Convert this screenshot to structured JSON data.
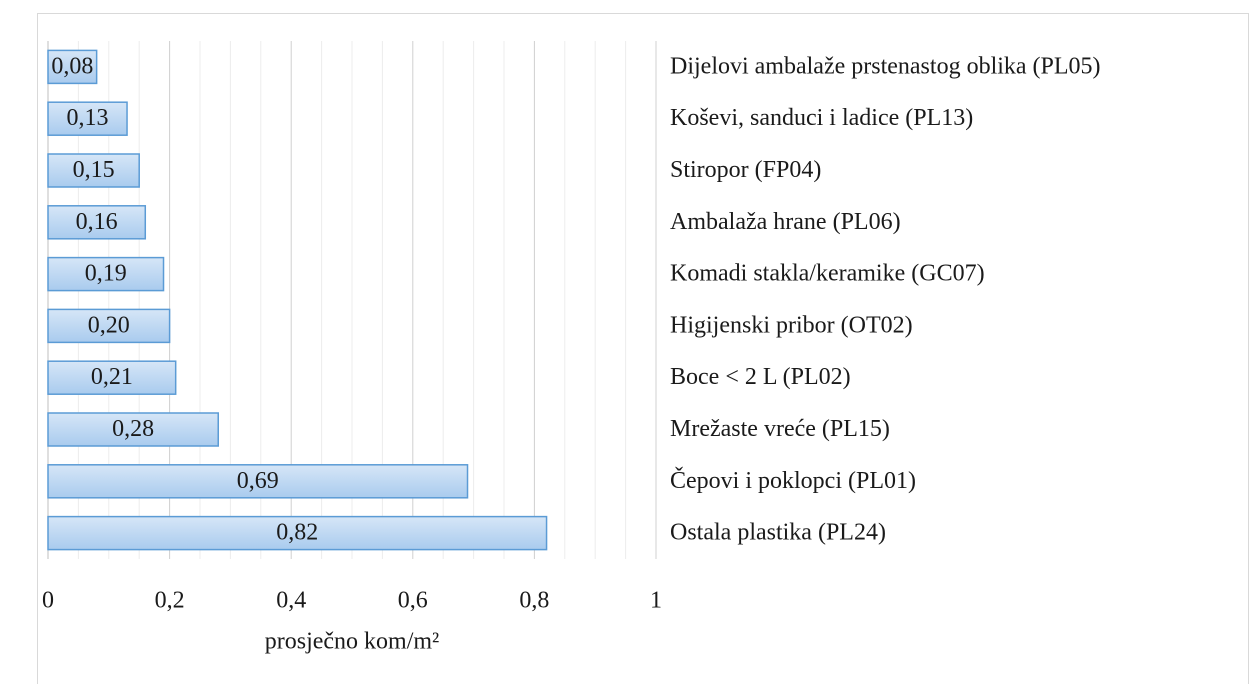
{
  "chart_data": {
    "type": "hbar",
    "categories": [
      "Dijelovi ambalaže prstenastog oblika (PL05)",
      "Koševi, sanduci i ladice (PL13)",
      "Stiropor (FP04)",
      "Ambalaža hrane (PL06)",
      "Komadi stakla/keramike (GC07)",
      "Higijenski pribor (OT02)",
      "Boce < 2 L (PL02)",
      "Mrežaste vreće (PL15)",
      "Čepovi i poklopci (PL01)",
      "Ostala plastika (PL24)"
    ],
    "values": [
      0.08,
      0.13,
      0.15,
      0.16,
      0.19,
      0.2,
      0.21,
      0.28,
      0.69,
      0.82
    ],
    "value_labels": [
      "0,08",
      "0,13",
      "0,15",
      "0,16",
      "0,19",
      "0,20",
      "0,21",
      "0,28",
      "0,69",
      "0,82"
    ],
    "color": "#a9cbee",
    "edge_color": "#5b9bd5",
    "xlim": [
      0,
      1
    ],
    "xticks": [
      0,
      {
        "value": 0.2,
        "label": "0,2"
      },
      {
        "value": 0.4,
        "label": "0,4"
      },
      {
        "value": 0.6,
        "label": "0,6"
      },
      {
        "value": 0.8,
        "label": "0,8"
      },
      1
    ],
    "xminorticks": [
      0.05,
      0.1,
      0.15,
      0.25,
      0.3,
      0.35,
      0.45,
      0.5,
      0.55,
      0.65,
      0.7,
      0.75,
      0.85,
      0.9,
      0.95
    ],
    "xlabel": "prosječno kom/m²",
    "grid": true
  }
}
